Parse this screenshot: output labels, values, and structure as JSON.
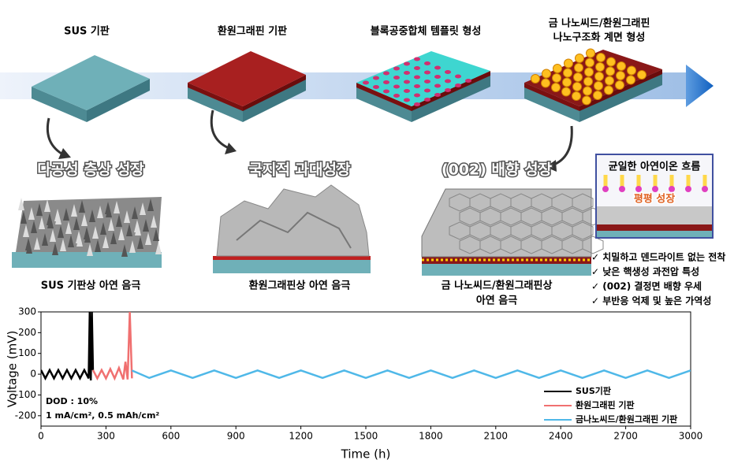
{
  "stages": [
    {
      "lines": [
        "SUS 기판"
      ]
    },
    {
      "lines": [
        "환원그래핀 기판"
      ]
    },
    {
      "lines": [
        "블록공중합체 템플릿 형성"
      ]
    },
    {
      "lines": [
        "금 나노씨드/환원그래핀",
        "나노구조화 계면 형성"
      ]
    }
  ],
  "growth": [
    "다공성 층상 성장",
    "국지적 과대성장",
    "(002) 배향 성장"
  ],
  "captions": [
    {
      "lines": [
        "SUS 기판상 아연 음극"
      ]
    },
    {
      "lines": [
        "환원그래핀상 아연 음극"
      ]
    },
    {
      "lines": [
        "금 나노씨드/환원그래핀상",
        "아연 음극"
      ]
    }
  ],
  "inset": {
    "title": "균일한 아연이온 흐름",
    "label": "평평 성장"
  },
  "checklist": [
    "✓ 치밀하고 덴드라이트 없는 전착",
    "✓ 낮은 핵생성 과전압 특성",
    "✓ (002) 결정면 배향 우세",
    "✓ 부반응 억제 및 높은 가역성"
  ],
  "chart_data": {
    "type": "line",
    "x_label": "Time (h)",
    "y_label": "Voltage (mV)",
    "xlim": [
      0,
      3000
    ],
    "xticks": [
      0,
      300,
      600,
      900,
      1200,
      1500,
      1800,
      2100,
      2400,
      2700,
      3000
    ],
    "ylim": [
      -250,
      300
    ],
    "yticks": [
      -200,
      -100,
      0,
      100,
      200,
      300
    ],
    "annotations": [
      "DOD : 10%",
      "1 mA/cm², 0.5 mAh/cm²"
    ],
    "legend": "lower right",
    "series": [
      {
        "name": "SUS기판",
        "color": "#000000",
        "x": [
          0,
          20,
          40,
          60,
          80,
          100,
          120,
          140,
          160,
          180,
          200,
          220,
          225,
          230,
          235,
          240
        ],
        "values": [
          20,
          -20,
          20,
          -20,
          20,
          -20,
          20,
          -20,
          20,
          -20,
          20,
          -20,
          300,
          -30,
          300,
          20
        ]
      },
      {
        "name": "환원그래핀 기판",
        "color": "#f07070",
        "x": [
          240,
          260,
          280,
          300,
          320,
          340,
          360,
          380,
          390,
          400,
          410,
          420
        ],
        "values": [
          20,
          -20,
          20,
          -20,
          25,
          -20,
          30,
          -25,
          60,
          -25,
          300,
          -20
        ]
      },
      {
        "name": "금나노씨드/환원그래핀 기판",
        "color": "#4fb8e8",
        "x": [
          420,
          500,
          600,
          700,
          800,
          900,
          1000,
          1100,
          1200,
          1300,
          1400,
          1500,
          1600,
          1700,
          1800,
          1900,
          2000,
          2100,
          2200,
          2300,
          2400,
          2500,
          2600,
          2700,
          2800,
          2900,
          3000
        ],
        "values": [
          18,
          -18,
          18,
          -18,
          18,
          -18,
          18,
          -18,
          18,
          -18,
          18,
          -18,
          18,
          -18,
          18,
          -18,
          18,
          -18,
          18,
          -18,
          18,
          -18,
          18,
          -18,
          18,
          -18,
          18
        ]
      }
    ]
  }
}
